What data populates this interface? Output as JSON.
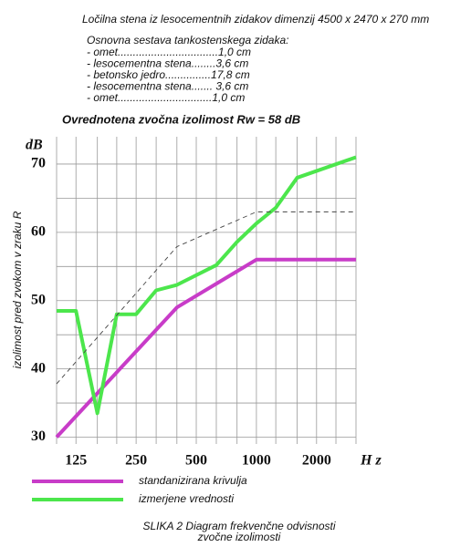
{
  "chart_data": {
    "type": "line",
    "title": "Ločilna stena iz lesocementnih zidakov dimenzij 4500 x 2470 x 270 mm",
    "subtitle": "Osnovna sestava tankostenskega zidaka:",
    "composition": [
      "- omet.................................1,0 cm",
      "- lesocementna stena........3,6 cm",
      "- betonsko jedro...............17,8 cm",
      "- lesocementna stena....... 3,6 cm",
      "- omet...............................1,0 cm"
    ],
    "annotation": "Ovrednotena zvočna izolimost Rw = 58 dB",
    "y_unit": "dB",
    "y_label": "izolimost pred zvokom v zraku  R",
    "x_label": "H z",
    "caption": [
      "SLIKA 2   Diagram frekvenčne odvisnosti",
      "zvočne izolimosti"
    ],
    "log_x": true,
    "xlim": [
      100,
      3150
    ],
    "ylim": [
      29,
      74
    ],
    "xticks": [
      125,
      250,
      500,
      1000,
      2000
    ],
    "yticks": [
      30,
      40,
      50,
      60,
      70
    ],
    "xgrid": [
      100,
      125,
      160,
      200,
      250,
      315,
      400,
      500,
      630,
      800,
      1000,
      1250,
      1600,
      2000,
      2500,
      3150
    ],
    "ygrid": [
      30,
      35,
      40,
      45,
      50,
      55,
      60,
      65,
      70
    ],
    "series": [
      {
        "name": "standanizirana krivulja",
        "color": "#c83cc8",
        "x": [
          100,
          400,
          1000,
          3150
        ],
        "values": [
          30,
          49,
          56,
          56
        ]
      },
      {
        "name": "izmerjene vrednosti",
        "color": "#4ce64c",
        "x": [
          100,
          125,
          160,
          200,
          250,
          315,
          400,
          630,
          800,
          1000,
          1250,
          1600,
          3150
        ],
        "values": [
          48.5,
          48.5,
          33.5,
          48,
          48,
          51.5,
          52.3,
          55.2,
          58.6,
          61.3,
          63.6,
          68,
          71
        ]
      },
      {
        "color": "#444444",
        "dashed": true,
        "x": [
          100,
          400,
          1000,
          3150
        ],
        "values": [
          37.8,
          57.9,
          63,
          63
        ]
      }
    ]
  }
}
